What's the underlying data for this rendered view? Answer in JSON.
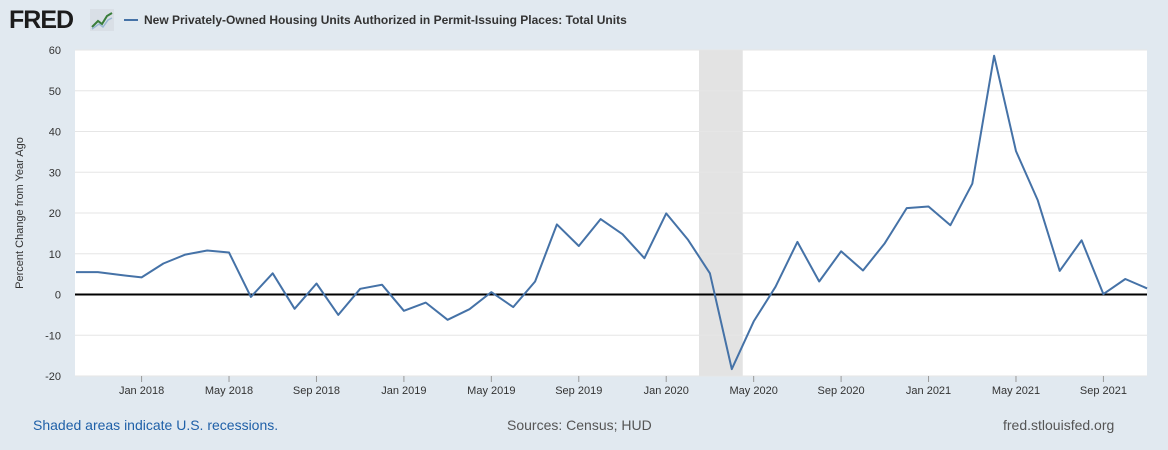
{
  "header": {
    "logo_text": "FRED",
    "logo_mark_icon": "fred-trend-icon",
    "series_title": "New Privately-Owned Housing Units Authorized in Permit-Issuing Places: Total Units"
  },
  "footer": {
    "recession_note": "Shaded areas indicate U.S. recessions.",
    "sources": "Sources: Census; HUD",
    "site": "fred.stlouisfed.org"
  },
  "colors": {
    "series": "#4572a7",
    "recession": "#e3e3e3",
    "background": "#e1e9f0",
    "plot": "#ffffff"
  },
  "chart_data": {
    "type": "line",
    "title": "",
    "xlabel": "",
    "ylabel": "Percent Change from Year Ago",
    "ylim": [
      -20,
      60
    ],
    "yticks": [
      60,
      50,
      40,
      30,
      20,
      10,
      0,
      -10,
      -20
    ],
    "grid": true,
    "legend_position": "top-left",
    "x_ticks": [
      "Jan 2018",
      "May 2018",
      "Sep 2018",
      "Jan 2019",
      "May 2019",
      "Sep 2019",
      "Jan 2020",
      "May 2020",
      "Sep 2020",
      "Jan 2021",
      "May 2021",
      "Sep 2021"
    ],
    "recession": {
      "start": "2020-03",
      "end": "2020-04"
    },
    "series": [
      {
        "name": "New Privately-Owned Housing Units Authorized in Permit-Issuing Places: Total Units",
        "x": [
          "2017-10",
          "2017-11",
          "2017-12",
          "2018-01",
          "2018-02",
          "2018-03",
          "2018-04",
          "2018-05",
          "2018-06",
          "2018-07",
          "2018-08",
          "2018-09",
          "2018-10",
          "2018-11",
          "2018-12",
          "2019-01",
          "2019-02",
          "2019-03",
          "2019-04",
          "2019-05",
          "2019-06",
          "2019-07",
          "2019-08",
          "2019-09",
          "2019-10",
          "2019-11",
          "2019-12",
          "2020-01",
          "2020-02",
          "2020-03",
          "2020-04",
          "2020-05",
          "2020-06",
          "2020-07",
          "2020-08",
          "2020-09",
          "2020-10",
          "2020-11",
          "2020-12",
          "2021-01",
          "2021-02",
          "2021-03",
          "2021-04",
          "2021-05",
          "2021-06",
          "2021-07",
          "2021-08",
          "2021-09",
          "2021-10",
          "2021-11"
        ],
        "values": [
          5.5,
          5.5,
          4.8,
          4.2,
          7.6,
          9.8,
          10.8,
          10.3,
          -0.6,
          5.2,
          -3.5,
          2.7,
          -5.0,
          1.4,
          2.4,
          -4.0,
          -2.0,
          -6.2,
          -3.6,
          0.6,
          -3.1,
          3.2,
          17.2,
          11.9,
          18.5,
          14.8,
          8.9,
          19.9,
          13.4,
          5.2,
          -18.3,
          -6.6,
          1.9,
          12.9,
          3.2,
          10.6,
          5.9,
          12.6,
          21.2,
          21.6,
          17.0,
          27.2,
          58.6,
          35.2,
          23.1,
          5.8,
          13.3,
          0.1,
          3.8,
          1.5
        ]
      }
    ]
  }
}
